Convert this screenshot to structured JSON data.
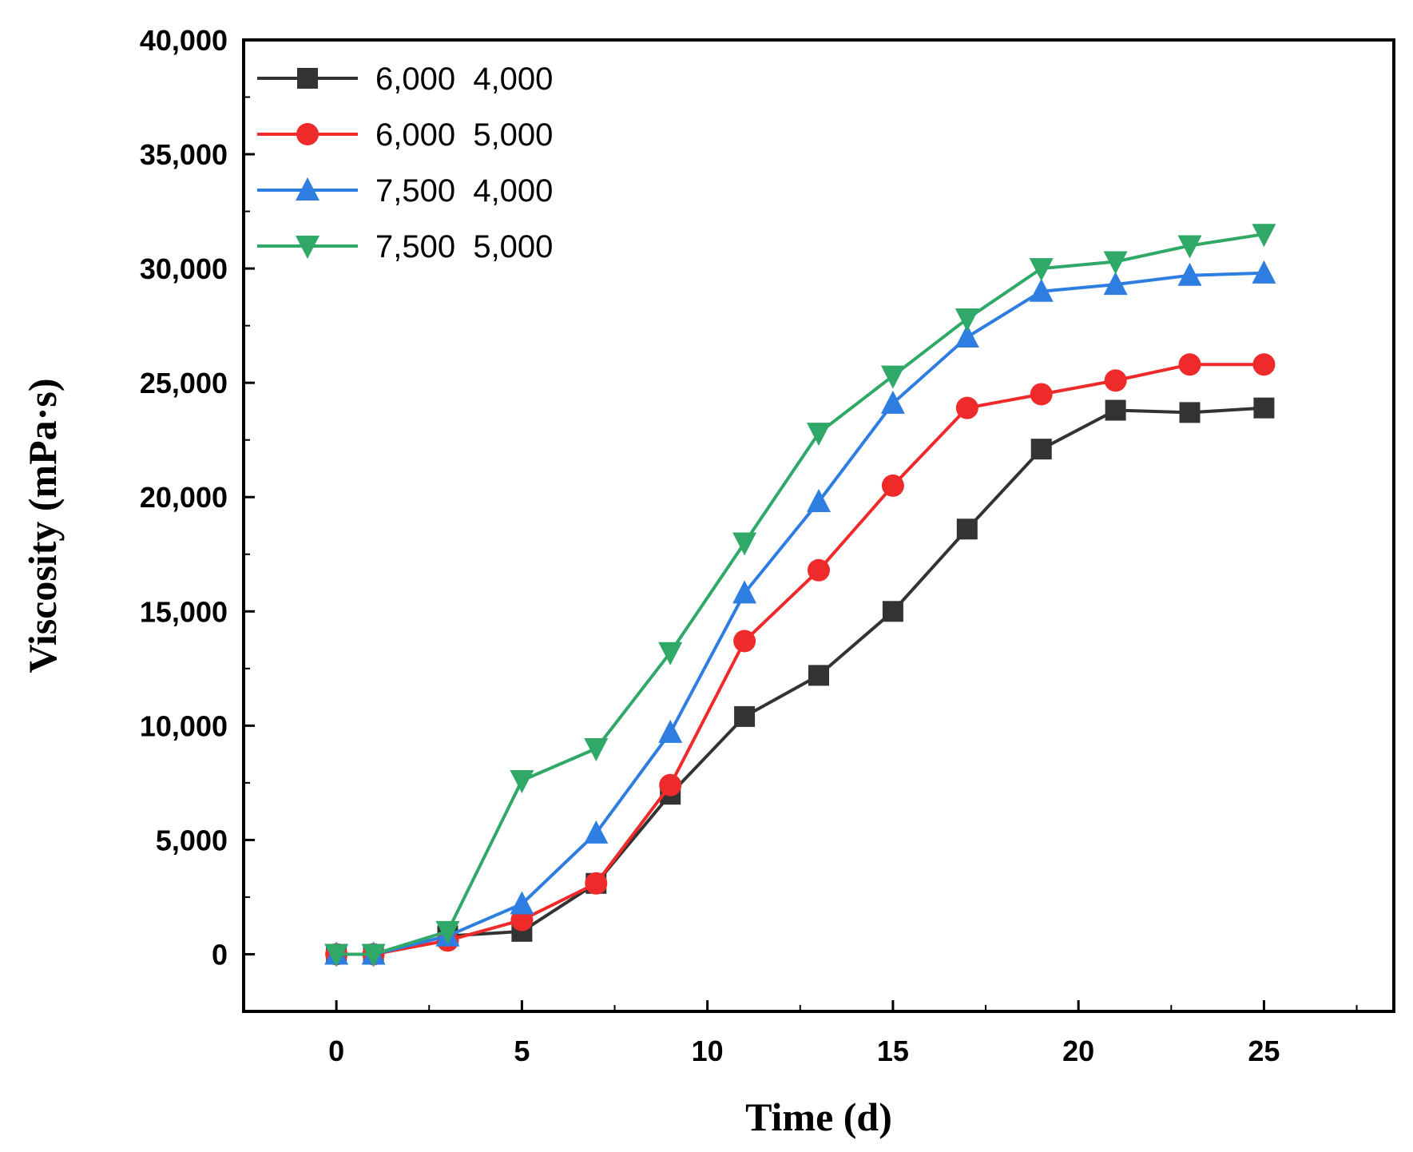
{
  "chart_data": {
    "type": "line",
    "title": "",
    "xlabel": "Time (d)",
    "ylabel": "Viscosity (mPa·s)",
    "xlim": [
      -2.5,
      28.5
    ],
    "ylim": [
      -2500,
      40000
    ],
    "x_ticks": [
      0,
      5,
      10,
      15,
      20,
      25
    ],
    "x_tick_labels": [
      "0",
      "5",
      "10",
      "15",
      "20",
      "25"
    ],
    "y_ticks": [
      0,
      5000,
      10000,
      15000,
      20000,
      25000,
      30000,
      35000,
      40000
    ],
    "y_tick_labels": [
      "0",
      "5,000",
      "10,000",
      "15,000",
      "20,000",
      "25,000",
      "30,000",
      "35,000",
      "40,000"
    ],
    "legend_position": "top-left",
    "x": [
      0,
      1,
      3,
      5,
      7,
      9,
      11,
      13,
      15,
      17,
      19,
      21,
      23,
      25
    ],
    "series": [
      {
        "name": "6,000  4,000",
        "color": "#333333",
        "marker": "square",
        "values": [
          0,
          0,
          800,
          1000,
          3100,
          7000,
          10400,
          12200,
          15000,
          18600,
          22100,
          23800,
          23700,
          23900
        ]
      },
      {
        "name": "6,000  5,000",
        "color": "#ee2a2a",
        "marker": "circle",
        "values": [
          0,
          0,
          600,
          1500,
          3100,
          7400,
          13700,
          16800,
          20500,
          23900,
          24500,
          25100,
          25800,
          25800
        ]
      },
      {
        "name": "7,500  4,000",
        "color": "#2e7de0",
        "marker": "triangle-up",
        "values": [
          0,
          0,
          800,
          2200,
          5300,
          9700,
          15800,
          19800,
          24100,
          27000,
          29000,
          29300,
          29700,
          29800
        ]
      },
      {
        "name": "7,500  5,000",
        "color": "#2fa868",
        "marker": "triangle-down",
        "values": [
          0,
          0,
          1000,
          7600,
          9000,
          13200,
          18000,
          22800,
          25300,
          27800,
          30000,
          30300,
          31000,
          31500
        ]
      }
    ]
  }
}
